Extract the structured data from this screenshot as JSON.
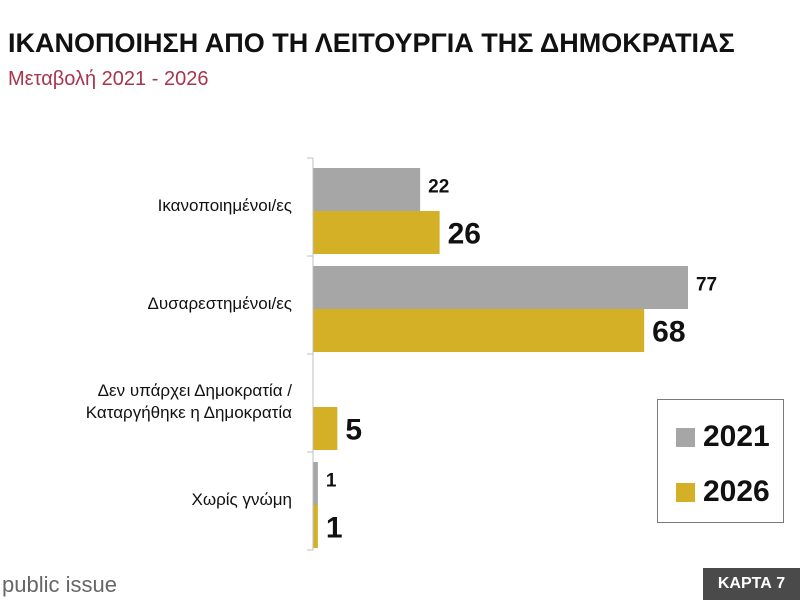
{
  "header": {
    "title": "ΙΚΑΝΟΠΟΙΗΣΗ ΑΠΟ ΤΗ ΛΕΙΤΟΥΡΓΙΑ ΤΗΣ ΔΗΜΟΚΡΑΤΙΑΣ",
    "subtitle": "Μεταβολή 2021 - 2026"
  },
  "chart_data": {
    "type": "bar",
    "orientation": "horizontal",
    "title": "ΙΚΑΝΟΠΟΙΗΣΗ ΑΠΟ ΤΗ ΛΕΙΤΟΥΡΓΙΑ ΤΗΣ ΔΗΜΟΚΡΑΤΙΑΣ",
    "subtitle": "Μεταβολή 2021 - 2026",
    "categories": [
      [
        "Ικανοποιημένοι/ες"
      ],
      [
        "Δυσαρεστημένοι/ες"
      ],
      [
        "Δεν υπάρχει Δημοκρατία /",
        "Καταργήθηκε η Δημοκρατία"
      ],
      [
        "Χωρίς γνώμη"
      ]
    ],
    "series": [
      {
        "name": "2021",
        "color": "#a6a6a6",
        "values": [
          22,
          77,
          null,
          1
        ]
      },
      {
        "name": "2026",
        "color": "#d4b027",
        "values": [
          26,
          68,
          5,
          1
        ]
      }
    ],
    "xlim": [
      0,
      80
    ],
    "grid": false,
    "legend": "bottom-right"
  },
  "footer": {
    "brand": "public issue",
    "badge": "ΚΑΡΤΑ 7"
  }
}
